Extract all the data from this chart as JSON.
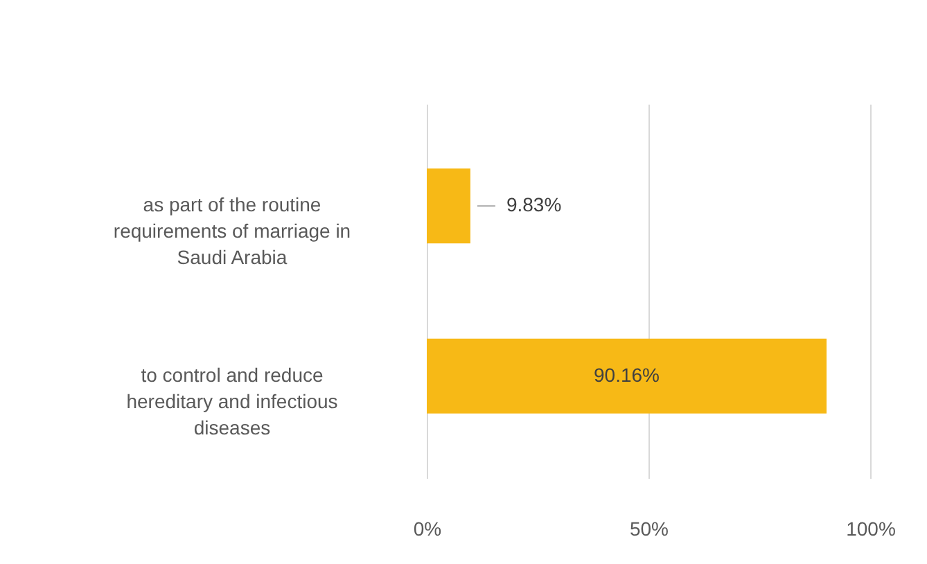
{
  "chart_data": {
    "type": "bar",
    "orientation": "horizontal",
    "categories": [
      "as part of the routine requirements of marriage in Saudi Arabia",
      "to control and reduce hereditary and infectious diseases"
    ],
    "values": [
      9.83,
      90.16
    ],
    "value_labels": [
      "9.83%",
      "90.16%"
    ],
    "color": "#f7b916",
    "xlim": [
      0,
      100
    ],
    "xticks": [
      {
        "value": 0,
        "label": "0%"
      },
      {
        "value": 50,
        "label": "50%"
      },
      {
        "value": 100,
        "label": "100%"
      }
    ],
    "grid": "x"
  }
}
